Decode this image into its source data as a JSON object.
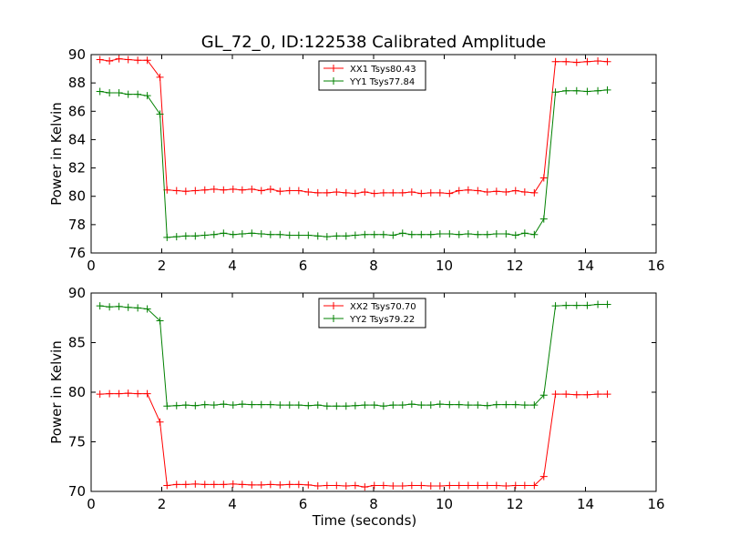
{
  "figure_title": "GL_72_0, ID:122538 Calibrated Amplitude",
  "chart_data": [
    {
      "type": "line",
      "ylabel": "Power in Kelvin",
      "xlabel": "",
      "xlim": [
        0,
        16
      ],
      "ylim": [
        76,
        90
      ],
      "xticks": [
        "0",
        "2",
        "4",
        "6",
        "8",
        "10",
        "12",
        "14",
        "16"
      ],
      "yticks": [
        "76",
        "78",
        "80",
        "82",
        "84",
        "86",
        "88",
        "90"
      ],
      "legend_position": "top-center",
      "x": [
        0.25,
        0.52,
        0.79,
        1.05,
        1.32,
        1.59,
        1.95,
        2.15,
        2.42,
        2.68,
        2.95,
        3.22,
        3.48,
        3.75,
        4.02,
        4.28,
        4.55,
        4.82,
        5.08,
        5.35,
        5.62,
        5.88,
        6.15,
        6.42,
        6.68,
        6.95,
        7.22,
        7.48,
        7.75,
        8.02,
        8.28,
        8.55,
        8.82,
        9.08,
        9.35,
        9.62,
        9.88,
        10.15,
        10.42,
        10.68,
        10.95,
        11.22,
        11.48,
        11.75,
        12.02,
        12.28,
        12.55,
        12.82,
        13.15,
        13.45,
        13.75,
        14.05,
        14.35,
        14.62
      ],
      "series": [
        {
          "name": "XX1 Tsys80.43",
          "color": "#ff0000",
          "values": [
            89.65,
            89.55,
            89.7,
            89.65,
            89.6,
            89.6,
            88.4,
            80.45,
            80.4,
            80.35,
            80.4,
            80.45,
            80.5,
            80.45,
            80.5,
            80.45,
            80.5,
            80.4,
            80.5,
            80.35,
            80.4,
            80.4,
            80.3,
            80.25,
            80.25,
            80.3,
            80.25,
            80.2,
            80.3,
            80.2,
            80.25,
            80.25,
            80.25,
            80.3,
            80.2,
            80.25,
            80.25,
            80.2,
            80.4,
            80.45,
            80.4,
            80.3,
            80.35,
            80.3,
            80.4,
            80.3,
            80.25,
            81.3,
            89.5,
            89.5,
            89.45,
            89.5,
            89.55,
            89.5
          ]
        },
        {
          "name": "YY1 Tsys77.84",
          "color": "#008000",
          "values": [
            87.4,
            87.3,
            87.3,
            87.2,
            87.2,
            87.1,
            85.8,
            77.1,
            77.15,
            77.2,
            77.2,
            77.25,
            77.3,
            77.4,
            77.3,
            77.35,
            77.4,
            77.35,
            77.3,
            77.3,
            77.25,
            77.25,
            77.25,
            77.2,
            77.15,
            77.2,
            77.2,
            77.25,
            77.3,
            77.3,
            77.3,
            77.25,
            77.4,
            77.3,
            77.3,
            77.3,
            77.35,
            77.35,
            77.3,
            77.35,
            77.3,
            77.3,
            77.35,
            77.35,
            77.25,
            77.4,
            77.3,
            78.4,
            87.35,
            87.45,
            87.45,
            87.4,
            87.45,
            87.5
          ]
        }
      ]
    },
    {
      "type": "line",
      "ylabel": "Power in Kelvin",
      "xlabel": "Time (seconds)",
      "xlim": [
        0,
        16
      ],
      "ylim": [
        70,
        90
      ],
      "xticks": [
        "0",
        "2",
        "4",
        "6",
        "8",
        "10",
        "12",
        "14",
        "16"
      ],
      "yticks": [
        "70",
        "75",
        "80",
        "85",
        "90"
      ],
      "legend_position": "top-center",
      "x": [
        0.25,
        0.52,
        0.79,
        1.05,
        1.32,
        1.59,
        1.95,
        2.15,
        2.42,
        2.68,
        2.95,
        3.22,
        3.48,
        3.75,
        4.02,
        4.28,
        4.55,
        4.82,
        5.08,
        5.35,
        5.62,
        5.88,
        6.15,
        6.42,
        6.68,
        6.95,
        7.22,
        7.48,
        7.75,
        8.02,
        8.28,
        8.55,
        8.82,
        9.08,
        9.35,
        9.62,
        9.88,
        10.15,
        10.42,
        10.68,
        10.95,
        11.22,
        11.48,
        11.75,
        12.02,
        12.28,
        12.55,
        12.82,
        13.15,
        13.45,
        13.75,
        14.05,
        14.35,
        14.62
      ],
      "series": [
        {
          "name": "XX2 Tsys70.70",
          "color": "#ff0000",
          "values": [
            79.8,
            79.85,
            79.85,
            79.9,
            79.85,
            79.85,
            77.0,
            70.6,
            70.7,
            70.7,
            70.75,
            70.7,
            70.7,
            70.7,
            70.75,
            70.7,
            70.65,
            70.65,
            70.7,
            70.65,
            70.7,
            70.7,
            70.65,
            70.55,
            70.6,
            70.6,
            70.55,
            70.6,
            70.45,
            70.6,
            70.6,
            70.55,
            70.55,
            70.6,
            70.6,
            70.55,
            70.55,
            70.6,
            70.6,
            70.6,
            70.6,
            70.6,
            70.6,
            70.55,
            70.6,
            70.6,
            70.6,
            71.5,
            79.8,
            79.8,
            79.75,
            79.75,
            79.8,
            79.8
          ]
        },
        {
          "name": "YY2 Tsys79.22",
          "color": "#008000",
          "values": [
            88.7,
            88.6,
            88.65,
            88.55,
            88.5,
            88.4,
            87.2,
            78.6,
            78.65,
            78.7,
            78.65,
            78.75,
            78.7,
            78.8,
            78.7,
            78.8,
            78.75,
            78.75,
            78.75,
            78.7,
            78.7,
            78.7,
            78.65,
            78.7,
            78.6,
            78.6,
            78.6,
            78.65,
            78.7,
            78.7,
            78.6,
            78.7,
            78.7,
            78.8,
            78.7,
            78.7,
            78.8,
            78.75,
            78.75,
            78.7,
            78.7,
            78.65,
            78.75,
            78.75,
            78.75,
            78.7,
            78.7,
            79.7,
            88.7,
            88.75,
            88.75,
            88.75,
            88.85,
            88.85
          ]
        }
      ]
    }
  ]
}
